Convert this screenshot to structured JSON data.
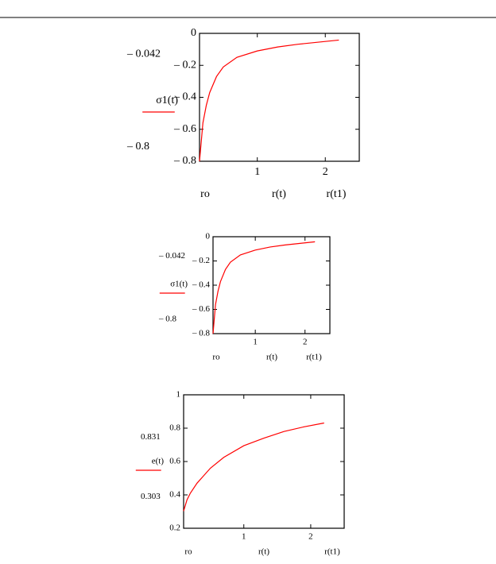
{
  "chart_data": [
    {
      "type": "line",
      "ylabel": "σ1(t)",
      "xlabels": [
        "ro",
        "r(t)",
        "r(t1)"
      ],
      "color": "#ff0000",
      "x": [
        0.15,
        0.2,
        0.25,
        0.3,
        0.4,
        0.5,
        0.7,
        1,
        1.3,
        1.6,
        1.9,
        2.2
      ],
      "values": [
        -0.8,
        -0.56,
        -0.45,
        -0.37,
        -0.27,
        -0.21,
        -0.15,
        -0.11,
        -0.085,
        -0.068,
        -0.055,
        -0.042
      ],
      "xlim": [
        0.15,
        2.5
      ],
      "ylim": [
        -0.8,
        0
      ],
      "xticks": [
        1,
        2
      ],
      "yticks": [
        0,
        {
          "value": -0.2,
          "label": "– 0.2"
        },
        {
          "value": -0.4,
          "label": "– 0.4"
        },
        {
          "value": -0.6,
          "label": "– 0.6"
        },
        {
          "value": -0.8,
          "label": "– 0.8"
        }
      ],
      "markers": [
        {
          "value": -0.042,
          "label": "– 0.042"
        },
        {
          "value": -0.8,
          "label": "– 0.8"
        }
      ]
    },
    {
      "type": "line",
      "ylabel": "σ1(t)",
      "xlabels": [
        "ro",
        "r(t)",
        "r(t1)"
      ],
      "color": "#ff0000",
      "x": [
        0.15,
        0.2,
        0.25,
        0.3,
        0.4,
        0.5,
        0.7,
        1,
        1.3,
        1.6,
        1.9,
        2.2
      ],
      "values": [
        -0.8,
        -0.56,
        -0.45,
        -0.37,
        -0.27,
        -0.21,
        -0.15,
        -0.11,
        -0.085,
        -0.068,
        -0.055,
        -0.042
      ],
      "xlim": [
        0.15,
        2.5
      ],
      "ylim": [
        -0.8,
        0
      ],
      "xticks": [
        1,
        2
      ],
      "yticks": [
        0,
        {
          "value": -0.2,
          "label": "– 0.2"
        },
        {
          "value": -0.4,
          "label": "– 0.4"
        },
        {
          "value": -0.6,
          "label": "– 0.6"
        },
        {
          "value": -0.8,
          "label": "– 0.8"
        }
      ],
      "markers": [
        {
          "value": -0.042,
          "label": "– 0.042"
        },
        {
          "value": -0.8,
          "label": "– 0.8"
        }
      ]
    },
    {
      "type": "line",
      "ylabel": "e(t)",
      "xlabels": [
        "ro",
        "r(t)",
        "r(t1)"
      ],
      "color": "#ff0000",
      "x": [
        0.1,
        0.15,
        0.2,
        0.3,
        0.5,
        0.7,
        1,
        1.3,
        1.6,
        1.9,
        2.2
      ],
      "values": [
        0.303,
        0.37,
        0.41,
        0.47,
        0.56,
        0.625,
        0.695,
        0.74,
        0.78,
        0.808,
        0.831
      ],
      "xlim": [
        0.1,
        2.5
      ],
      "ylim": [
        0.2,
        1
      ],
      "xticks": [
        1,
        2
      ],
      "yticks": [
        0.2,
        0.4,
        0.6,
        0.8,
        1
      ],
      "markers": [
        0.831,
        0.303
      ]
    }
  ]
}
